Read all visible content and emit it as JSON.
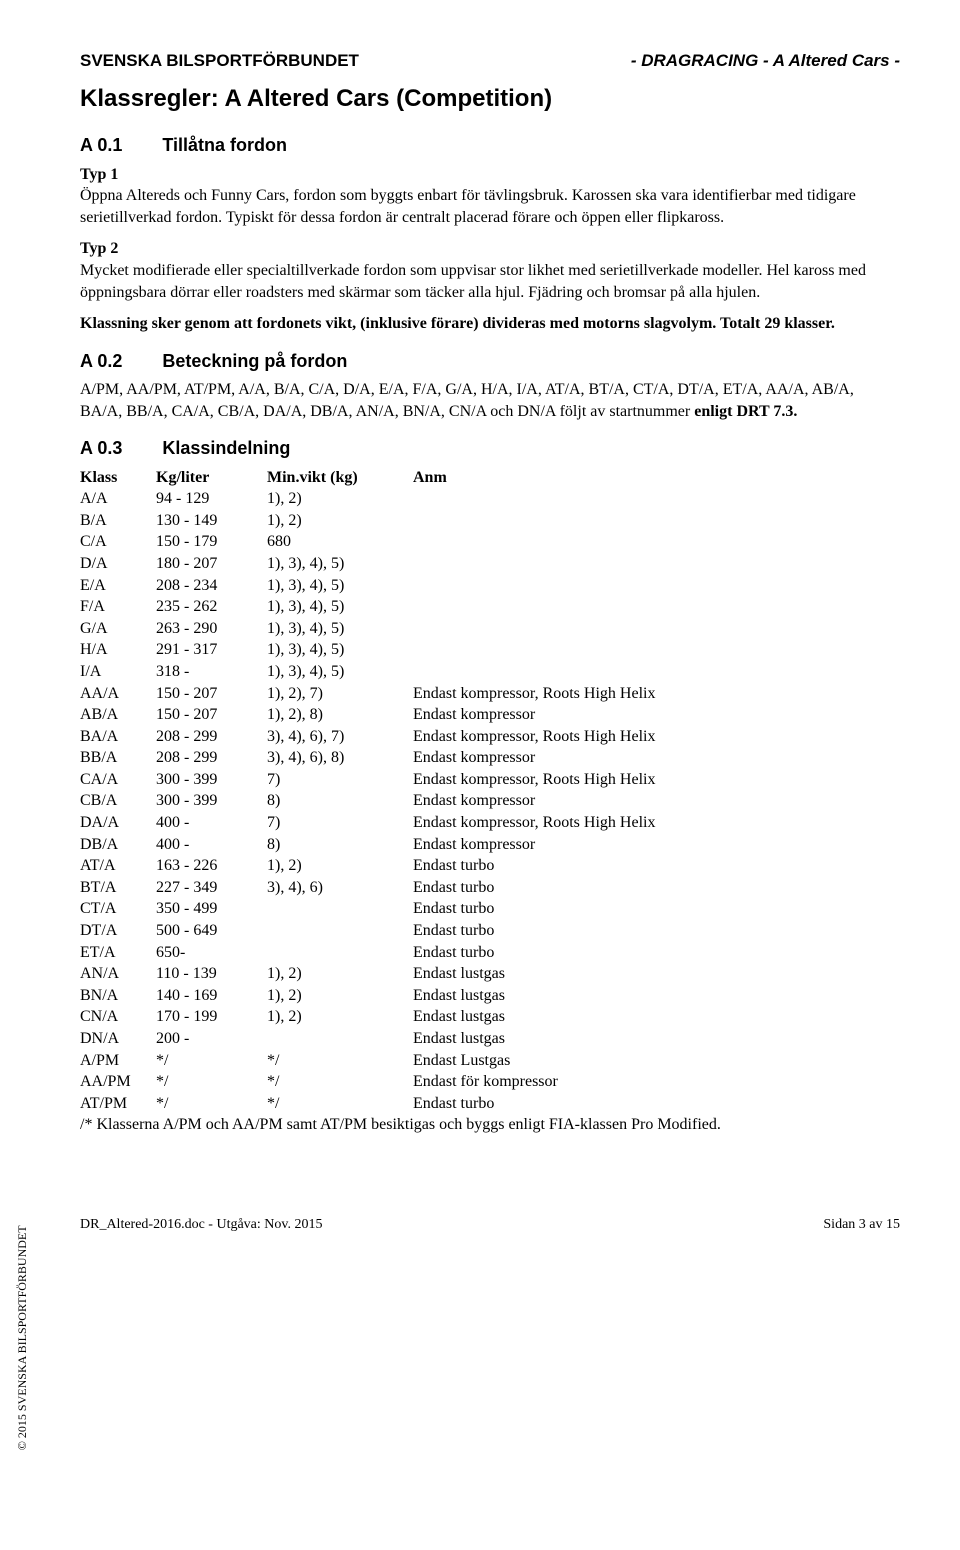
{
  "header": {
    "left": "SVENSKA BILSPORTFÖRBUNDET",
    "right": "- DRAGRACING - A Altered Cars -"
  },
  "title": "Klassregler: A Altered Cars (Competition)",
  "section01": {
    "num": "A 0.1",
    "label": "Tillåtna fordon",
    "typ1_heading": "Typ 1",
    "typ1_text": "Öppna Altereds och Funny Cars, fordon som byggts enbart för tävlingsbruk. Karossen ska vara identifierbar med tidigare serietillverkad fordon. Typiskt för dessa fordon är centralt placerad förare och öppen eller flipkaross.",
    "typ2_heading": "Typ 2",
    "typ2_text": "Mycket modifierade eller specialtillverkade fordon som uppvisar stor likhet med serietillverkade modeller. Hel kaross med öppningsbara dörrar eller roadsters med skärmar som täcker alla hjul. Fjädring och bromsar på alla hjulen.",
    "klassning": "Klassning sker genom att fordonets vikt, (inklusive förare) divideras med motorns slagvolym. Totalt 29 klasser."
  },
  "section02": {
    "num": "A 0.2",
    "label": "Beteckning på fordon",
    "text_a": "A/PM, AA/PM, AT/PM, A/A, B/A, C/A, D/A, E/A, F/A, G/A, H/A, I/A, AT/A, BT/A, CT/A, DT/A, ET/A, AA/A, AB/A, BA/A, BB/A, CA/A, CB/A, DA/A, DB/A, AN/A, BN/A, CN/A och DN/A följt av startnummer ",
    "text_b": "enligt DRT 7.3."
  },
  "section03": {
    "num": "A 0.3",
    "label": "Klassindelning",
    "headers": {
      "c1": "Klass",
      "c2": "Kg/liter",
      "c3": "Min.vikt (kg)",
      "c4": "Anm"
    },
    "rows": [
      {
        "c1": "A/A",
        "c2": "94 - 129",
        "c3": "1), 2)",
        "c4": ""
      },
      {
        "c1": "B/A",
        "c2": "130 - 149",
        "c3": "1), 2)",
        "c4": ""
      },
      {
        "c1": "C/A",
        "c2": "150 - 179",
        "c3": "680",
        "c4": ""
      },
      {
        "c1": "D/A",
        "c2": "180 - 207",
        "c3": "1), 3), 4), 5)",
        "c4": ""
      },
      {
        "c1": "E/A",
        "c2": "208 - 234",
        "c3": "1), 3), 4), 5)",
        "c4": ""
      },
      {
        "c1": "F/A",
        "c2": "235 - 262",
        "c3": "1), 3), 4), 5)",
        "c4": ""
      },
      {
        "c1": "G/A",
        "c2": "263 - 290",
        "c3": "1), 3), 4), 5)",
        "c4": ""
      },
      {
        "c1": "H/A",
        "c2": "291 - 317",
        "c3": "1), 3), 4), 5)",
        "c4": ""
      },
      {
        "c1": "I/A",
        "c2": "318 -",
        "c3": "1), 3), 4), 5)",
        "c4": ""
      },
      {
        "c1": "AA/A",
        "c2": "150 - 207",
        "c3": "1), 2), 7)",
        "c4": "Endast kompressor, Roots High Helix"
      },
      {
        "c1": "AB/A",
        "c2": "150 - 207",
        "c3": "1), 2), 8)",
        "c4": "Endast kompressor"
      },
      {
        "c1": "BA/A",
        "c2": "208 - 299",
        "c3": "3), 4), 6), 7)",
        "c4": "Endast kompressor, Roots High Helix"
      },
      {
        "c1": "BB/A",
        "c2": "208 - 299",
        "c3": "3), 4), 6), 8)",
        "c4": "Endast kompressor"
      },
      {
        "c1": "CA/A",
        "c2": "300 - 399",
        "c3": "7)",
        "c4": "Endast kompressor, Roots High Helix"
      },
      {
        "c1": "CB/A",
        "c2": "300 - 399",
        "c3": "8)",
        "c4": "Endast kompressor"
      },
      {
        "c1": "DA/A",
        "c2": "400 -",
        "c3": "7)",
        "c4": "Endast kompressor, Roots High Helix"
      },
      {
        "c1": "DB/A",
        "c2": "400 -",
        "c3": "8)",
        "c4": "Endast kompressor"
      },
      {
        "c1": "AT/A",
        "c2": "163 - 226",
        "c3": "1), 2)",
        "c4": "Endast turbo"
      },
      {
        "c1": "BT/A",
        "c2": "227 - 349",
        "c3": "3), 4), 6)",
        "c4": "Endast turbo"
      },
      {
        "c1": "CT/A",
        "c2": "350 - 499",
        "c3": "",
        "c4": "Endast turbo"
      },
      {
        "c1": "DT/A",
        "c2": "500 - 649",
        "c3": "",
        "c4": "Endast turbo"
      },
      {
        "c1": "ET/A",
        "c2": "650-",
        "c3": "",
        "c4": "Endast turbo"
      },
      {
        "c1": "AN/A",
        "c2": "110 - 139",
        "c3": "1), 2)",
        "c4": "Endast lustgas"
      },
      {
        "c1": "BN/A",
        "c2": "140 - 169",
        "c3": "1), 2)",
        "c4": "Endast lustgas"
      },
      {
        "c1": "CN/A",
        "c2": "170 - 199",
        "c3": "1), 2)",
        "c4": "Endast lustgas"
      },
      {
        "c1": "DN/A",
        "c2": "200 -",
        "c3": "",
        "c4": "Endast lustgas"
      },
      {
        "c1": "A/PM",
        "c2": "*/",
        "c3": "*/",
        "c4": "Endast Lustgas"
      },
      {
        "c1": "AA/PM",
        "c2": "*/",
        "c3": "*/",
        "c4": "Endast för kompressor"
      },
      {
        "c1": "AT/PM",
        "c2": "*/",
        "c3": "*/",
        "c4": "Endast turbo"
      }
    ],
    "footnote": "/* Klasserna A/PM och AA/PM samt AT/PM besiktigas och byggs enligt FIA-klassen Pro Modified."
  },
  "sidebar": "© 2015 SVENSKA BILSPORTFÖRBUNDET",
  "footer": {
    "left": "DR_Altered-2016.doc - Utgåva: Nov. 2015",
    "right": "Sidan 3 av 15"
  }
}
